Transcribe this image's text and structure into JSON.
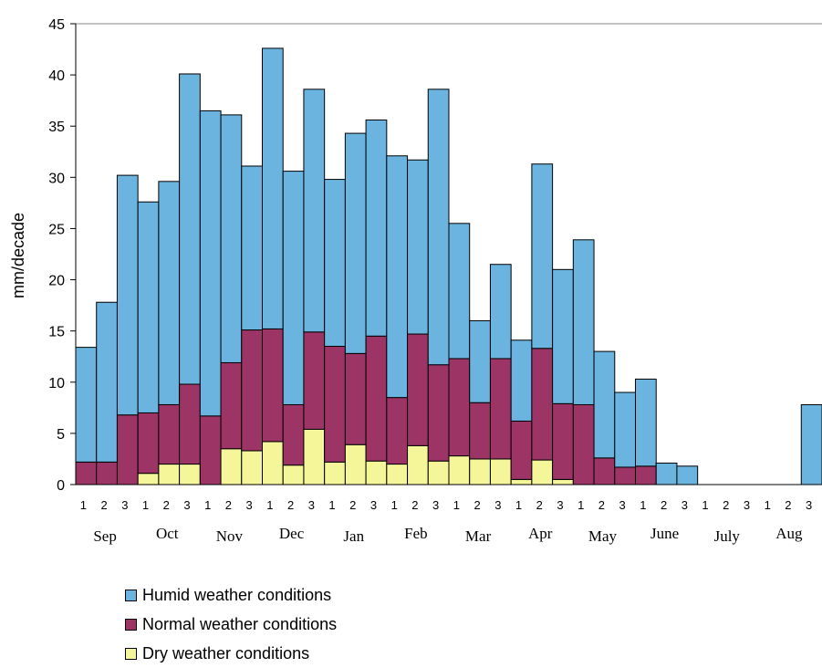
{
  "chart_data": {
    "type": "bar",
    "stacked": true,
    "title": "",
    "xlabel": "",
    "ylabel": "mm/decade",
    "ylim": [
      0,
      45
    ],
    "yticks": [
      "0",
      "5",
      "10",
      "15",
      "20",
      "25",
      "30",
      "35",
      "40",
      "45"
    ],
    "grid": false,
    "legend_position": "bottom",
    "months": [
      "Sep",
      "Oct",
      "Nov",
      "Dec",
      "Jan",
      "Feb",
      "Mar",
      "Apr",
      "May",
      "June",
      "July",
      "Aug"
    ],
    "categories": [
      "1",
      "2",
      "3",
      "1",
      "2",
      "3",
      "1",
      "2",
      "3",
      "1",
      "2",
      "3",
      "1",
      "2",
      "3",
      "1",
      "2",
      "3",
      "1",
      "2",
      "3",
      "1",
      "2",
      "3",
      "1",
      "2",
      "3",
      "1",
      "2",
      "3",
      "1",
      "2",
      "3",
      "1",
      "2",
      "3"
    ],
    "totals": [
      13.4,
      17.8,
      30.2,
      27.6,
      29.6,
      40.1,
      36.5,
      36.1,
      31.1,
      42.6,
      30.6,
      38.6,
      29.8,
      34.3,
      35.6,
      32.1,
      31.7,
      38.6,
      25.5,
      16.0,
      21.5,
      14.1,
      31.3,
      21.0,
      23.9,
      13.0,
      9.0,
      10.3,
      2.1,
      1.8,
      0,
      0,
      0,
      0,
      0,
      7.8
    ],
    "series": [
      {
        "name": "Humid weather conditions",
        "color": "#6cb4e0",
        "values": [
          11.2,
          15.6,
          23.4,
          20.6,
          21.8,
          30.3,
          29.8,
          24.2,
          16.0,
          27.4,
          22.8,
          23.7,
          16.3,
          21.5,
          21.1,
          23.6,
          17.0,
          26.9,
          13.2,
          8.0,
          9.2,
          7.9,
          18.0,
          13.1,
          16.1,
          10.4,
          7.3,
          8.5,
          2.1,
          1.8,
          0,
          0,
          0,
          0,
          0,
          7.8
        ]
      },
      {
        "name": "Normal weather conditions",
        "color": "#9c3566",
        "values": [
          2.2,
          2.2,
          6.8,
          5.9,
          5.8,
          7.8,
          6.7,
          8.4,
          11.8,
          11.0,
          5.9,
          9.5,
          11.3,
          8.9,
          12.2,
          6.5,
          10.9,
          9.4,
          9.5,
          5.5,
          9.8,
          5.7,
          10.9,
          7.4,
          7.8,
          2.6,
          1.7,
          1.8,
          0,
          0,
          0,
          0,
          0,
          0,
          0,
          0
        ]
      },
      {
        "name": "Dry weather conditions",
        "color": "#f5f59a",
        "values": [
          0,
          0,
          0,
          1.1,
          2.0,
          2.0,
          0,
          3.5,
          3.3,
          4.2,
          1.9,
          5.4,
          2.2,
          3.9,
          2.3,
          2.0,
          3.8,
          2.3,
          2.8,
          2.5,
          2.5,
          0.5,
          2.4,
          0.5,
          0,
          0,
          0,
          0,
          0,
          0,
          0,
          0,
          0,
          0,
          0,
          0
        ]
      }
    ]
  }
}
